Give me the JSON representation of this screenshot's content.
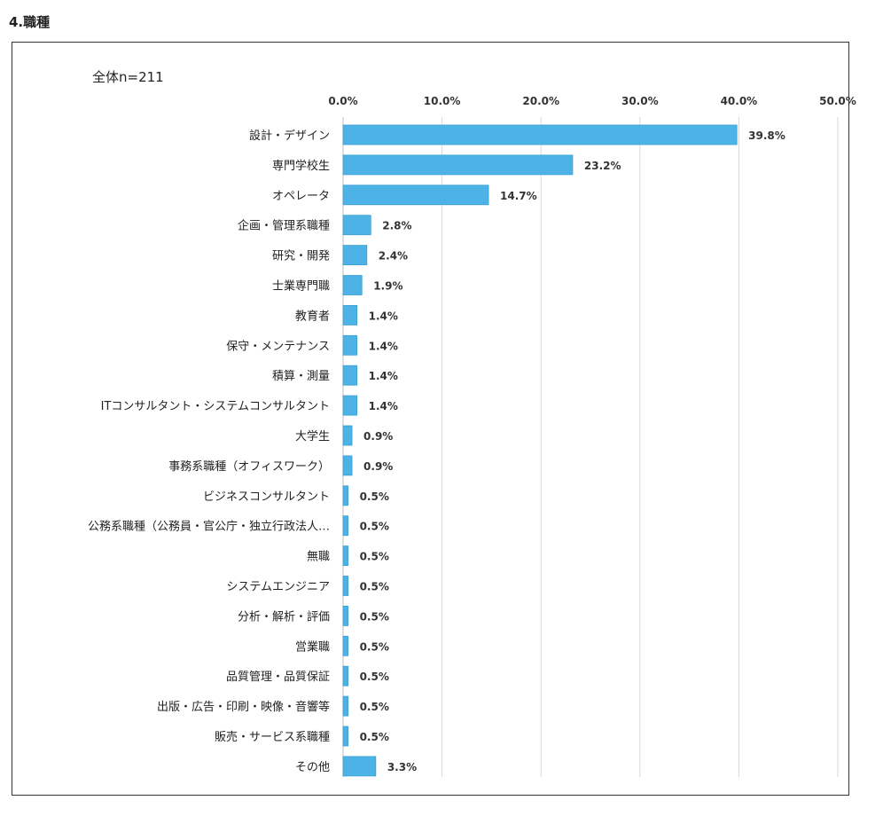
{
  "page": {
    "heading": "4.職種"
  },
  "chart_data": {
    "type": "bar",
    "orientation": "horizontal",
    "title": "全体n=211",
    "xlim": [
      0,
      50
    ],
    "x_ticks": [
      "0.0%",
      "10.0%",
      "20.0%",
      "30.0%",
      "40.0%",
      "50.0%"
    ],
    "x_axis_position": "top",
    "grid": true,
    "bar_color": "#4db3e6",
    "categories": [
      "設計・デザイン",
      "専門学校生",
      "オペレータ",
      "企画・管理系職種",
      "研究・開発",
      "士業専門職",
      "教育者",
      "保守・メンテナンス",
      "積算・測量",
      "ITコンサルタント・システムコンサルタント",
      "大学生",
      "事務系職種（オフィスワーク）",
      "ビジネスコンサルタント",
      "公務系職種（公務員・官公庁・独立行政法人…",
      "無職",
      "システムエンジニア",
      "分析・解析・評価",
      "営業職",
      "品質管理・品質保証",
      "出版・広告・印刷・映像・音響等",
      "販売・サービス系職種",
      "その他"
    ],
    "values": [
      39.8,
      23.2,
      14.7,
      2.8,
      2.4,
      1.9,
      1.4,
      1.4,
      1.4,
      1.4,
      0.9,
      0.9,
      0.5,
      0.5,
      0.5,
      0.5,
      0.5,
      0.5,
      0.5,
      0.5,
      0.5,
      3.3
    ],
    "value_labels": [
      "39.8%",
      "23.2%",
      "14.7%",
      "2.8%",
      "2.4%",
      "1.9%",
      "1.4%",
      "1.4%",
      "1.4%",
      "1.4%",
      "0.9%",
      "0.9%",
      "0.5%",
      "0.5%",
      "0.5%",
      "0.5%",
      "0.5%",
      "0.5%",
      "0.5%",
      "0.5%",
      "0.5%",
      "3.3%"
    ]
  }
}
